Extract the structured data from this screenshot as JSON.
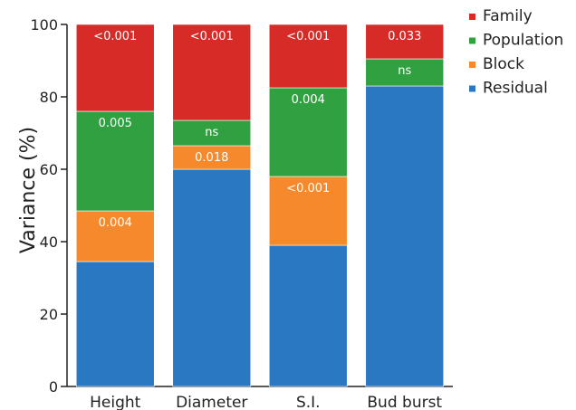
{
  "chart_data": {
    "type": "bar",
    "stacked": true,
    "ylabel": "Variance (%)",
    "ylim": [
      0,
      100
    ],
    "yticks": [
      0,
      20,
      40,
      60,
      80,
      100
    ],
    "categories": [
      "Height",
      "Diameter",
      "S.I.",
      "Bud burst"
    ],
    "series": [
      {
        "name": "Residual",
        "color": "#2b78c2",
        "values": [
          34.5,
          60,
          39,
          83
        ],
        "labels": [
          "",
          "",
          "",
          ""
        ]
      },
      {
        "name": "Block",
        "color": "#f6892b",
        "values": [
          14,
          6.5,
          19,
          0
        ],
        "labels": [
          "0.004",
          "0.018",
          "<0.001",
          ""
        ]
      },
      {
        "name": "Population",
        "color": "#31a041",
        "values": [
          27.5,
          7,
          24.5,
          7.5
        ],
        "labels": [
          "0.005",
          "ns",
          "0.004",
          "ns"
        ]
      },
      {
        "name": "Family",
        "color": "#d62b27",
        "values": [
          24,
          26.5,
          17.5,
          9.5
        ],
        "labels": [
          "<0.001",
          "<0.001",
          "<0.001",
          "0.033"
        ]
      }
    ],
    "legend": {
      "position": "top-right",
      "order": [
        "Family",
        "Population",
        "Block",
        "Residual"
      ]
    }
  }
}
